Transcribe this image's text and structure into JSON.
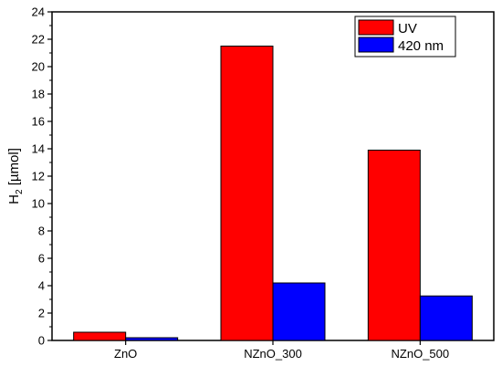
{
  "chart_data": {
    "type": "bar",
    "title": "",
    "xlabel": "",
    "ylabel": {
      "main": "H",
      "sub": "2",
      "rest": " [µmol]"
    },
    "categories": [
      "ZnO",
      "NZnO_300",
      "NZnO_500"
    ],
    "series": [
      {
        "name": "UV",
        "values": [
          0.6,
          21.5,
          13.9
        ],
        "color": "#ff0000"
      },
      {
        "name": "420 nm",
        "values": [
          0.2,
          4.2,
          3.25
        ],
        "color": "#0000ff"
      }
    ],
    "ylim": [
      0,
      24
    ],
    "yticks": [
      0,
      2,
      4,
      6,
      8,
      10,
      12,
      14,
      16,
      18,
      20,
      22,
      24
    ],
    "grid": false,
    "legend": "top-right"
  }
}
